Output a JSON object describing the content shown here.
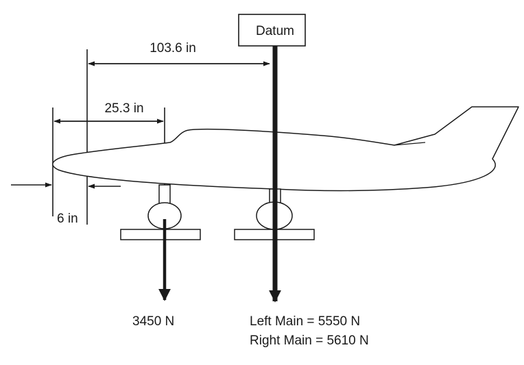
{
  "datum": {
    "label": "Datum"
  },
  "dimensions": {
    "datum_to_reference": "103.6 in",
    "nose_gear_to_ref": "25.3 in",
    "nose_offset": "6 in"
  },
  "forces": {
    "nose": "3450 N",
    "left_main": "Left Main = 5550 N",
    "right_main": "Right Main = 5610 N"
  }
}
